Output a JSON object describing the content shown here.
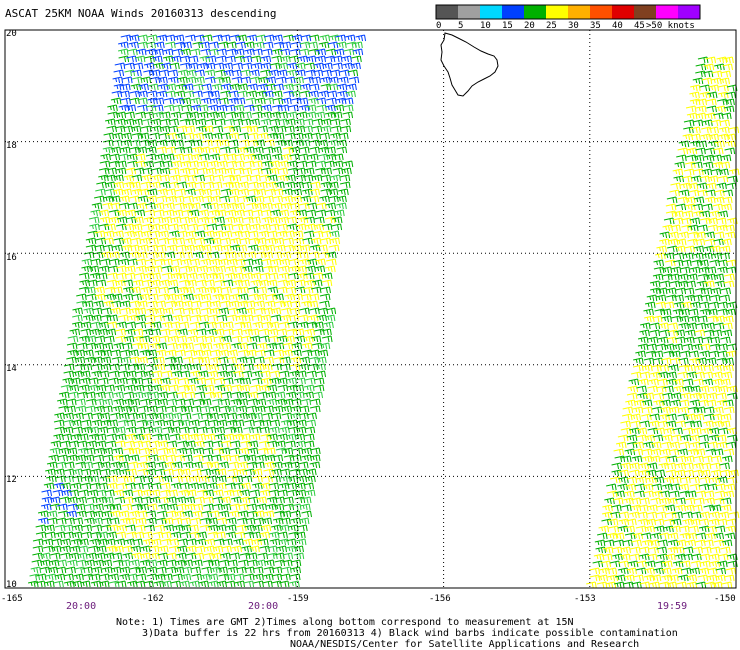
{
  "title": "ASCAT 25KM NOAA Winds 20160313 descending",
  "lat_labels": [
    "20",
    "18",
    "16",
    "14",
    "12",
    "10"
  ],
  "lon_labels": [
    "-165",
    "-162",
    "-159",
    "-156",
    "-153",
    "-150"
  ],
  "time_labels": [
    "20:00",
    "20:00",
    "19:59"
  ],
  "colorbar": {
    "labels": [
      "0",
      "5",
      "10",
      "15",
      "20",
      "25",
      "30",
      "35",
      "40",
      "45",
      ">50 knots"
    ],
    "colors": [
      "#555555",
      "#a0a0a0",
      "#00d8ff",
      "#0040ff",
      "#00b000",
      "#ffff00",
      "#ffb000",
      "#ff5000",
      "#e00000",
      "#804020",
      "#ff00ff",
      "#a000ff"
    ]
  },
  "notes": {
    "line1": "Note: 1) Times are GMT 2)Times along bottom correspond to measurement at 15N",
    "line2": "3)Data buffer is 22 hrs from 20160313 4) Black wind barbs indicate possible contamination",
    "line3": "NOAA/NESDIS/Center for Satellite Applications and Research"
  },
  "map": {
    "lat_range": [
      10,
      20
    ],
    "lon_range": [
      -165,
      -150
    ],
    "grid": "dotted",
    "landmass": "Hawaii (Big Island) outline",
    "swaths": [
      {
        "name": "left",
        "time": "20:00",
        "dominant_colors": [
          "#00b000",
          "#ffff00",
          "#0040ff"
        ]
      },
      {
        "name": "right",
        "time": "19:59",
        "dominant_colors": [
          "#00b000",
          "#ffff00"
        ]
      }
    ]
  }
}
